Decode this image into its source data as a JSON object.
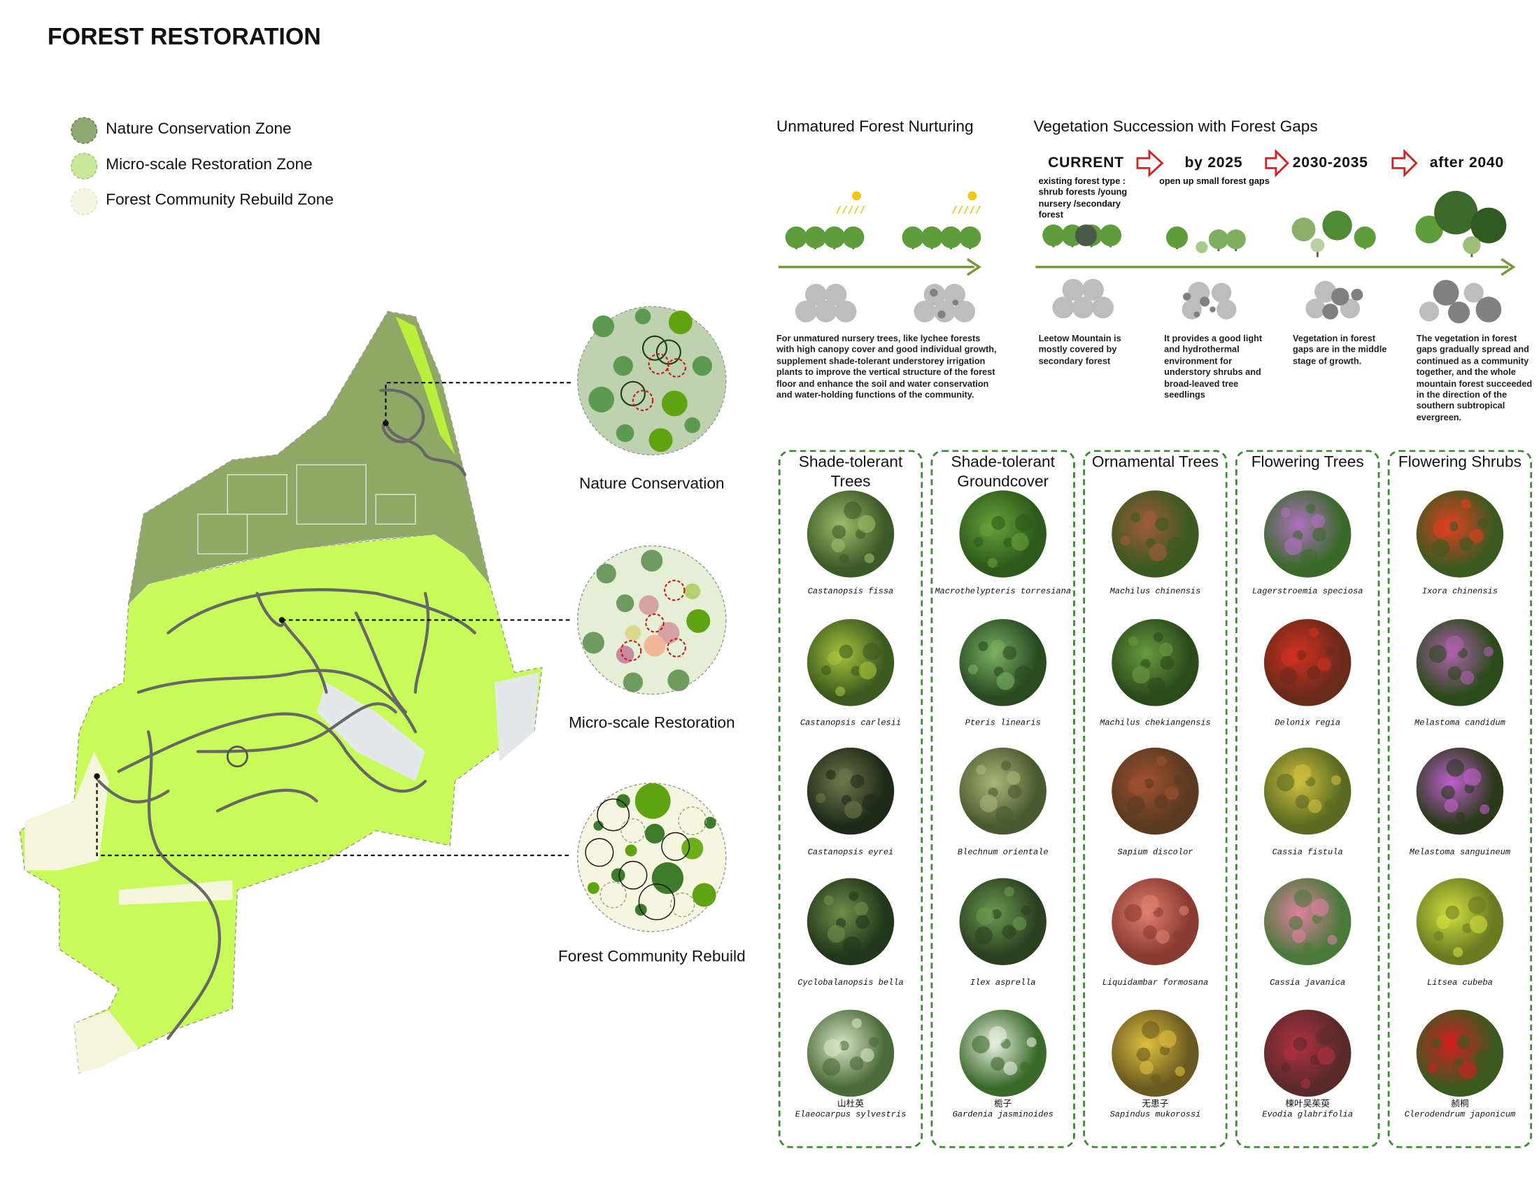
{
  "header": {
    "title": "FOREST RESTORATION"
  },
  "legend": [
    "Nature Conservation Zone",
    "Micro-scale Restoration Zone",
    "Forest Community Rebuild Zone"
  ],
  "zones": [
    "Nature Conservation",
    "Micro-scale Restoration",
    "Forest Community Rebuild"
  ],
  "nurturing": {
    "title": "Unmatured Forest Nurturing",
    "text": "For unmatured nursery trees, like lychee forests with high canopy cover and good individual growth, supplement shade-tolerant understorey irrigation plants to improve the vertical structure of the forest floor and enhance the soil and water conservation and water-holding functions of the community."
  },
  "succession": {
    "title": "Vegetation Succession with Forest Gaps",
    "stages": [
      {
        "label": "CURRENT",
        "note": "existing forest type : shrub forests /young nursery /secondary forest",
        "text": "Leetow Mountain is mostly covered by secondary forest"
      },
      {
        "label": "by 2025",
        "note": "open up small forest gaps",
        "text": "It provides a good light and hydrothermal environment for understory shrubs and broad-leaved tree seedlings"
      },
      {
        "label": "2030-2035",
        "text": "Vegetation in forest gaps are in the middle stage of growth."
      },
      {
        "label": "after 2040",
        "text": "The vegetation in forest gaps gradually spread and continued as a community together, and the whole mountain forest succeeded in the direction of the southern subtropical evergreen."
      }
    ]
  },
  "plants": [
    {
      "title": "Shade-tolerant Trees",
      "species": [
        {
          "name": "Castanopsis fissa"
        },
        {
          "name": "Castanopsis carlesii"
        },
        {
          "name": "Castanopsis eyrei"
        },
        {
          "name": "Cyclobalanopsis bella"
        },
        {
          "cn": "山杜英",
          "name": "Elaeocarpus sylvestris"
        }
      ]
    },
    {
      "title": "Shade-tolerant Groundcover",
      "species": [
        {
          "name": "Macrothelypteris torresiana"
        },
        {
          "name": "Pteris linearis"
        },
        {
          "name": "Blechnum orientale"
        },
        {
          "name": "Ilex asprella"
        },
        {
          "cn": "栀子",
          "name": "Gardenia jasminoides"
        }
      ]
    },
    {
      "title": "Ornamental Trees",
      "species": [
        {
          "name": "Machilus chinensis"
        },
        {
          "name": "Machilus chekiangensis"
        },
        {
          "name": "Sapium discolor"
        },
        {
          "name": "Liquidambar formosana"
        },
        {
          "cn": "无患子",
          "name": "Sapindus mukorossi"
        }
      ]
    },
    {
      "title": "Flowering Trees",
      "species": [
        {
          "name": "Lagerstroemia speciosa"
        },
        {
          "name": "Delonix regia"
        },
        {
          "name": "Cassia fistula"
        },
        {
          "name": "Cassia javanica"
        },
        {
          "cn": "楝叶吴茱萸",
          "name": "Evodia glabrifolia"
        }
      ]
    },
    {
      "title": "Flowering Shrubs",
      "species": [
        {
          "name": "Ixora chinensis"
        },
        {
          "name": "Melastoma candidum"
        },
        {
          "name": "Melastoma sanguineum"
        },
        {
          "name": "Litsea cubeba"
        },
        {
          "cn": "赪桐",
          "name": "Clerodendrum japonicum"
        }
      ]
    }
  ]
}
